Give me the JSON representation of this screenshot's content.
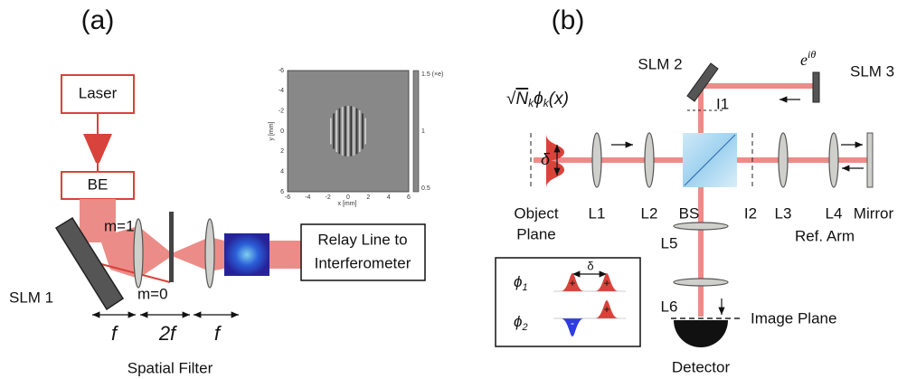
{
  "panel_a": {
    "label": "(a)",
    "laser": "Laser",
    "beam_expander": "BE",
    "order_1": "m=1",
    "order_0": "m=0",
    "slm": "SLM 1",
    "focal_1": "f",
    "focal_2": "2f",
    "focal_3": "f",
    "spatial_filter": "Spatial Filter",
    "relay": [
      "Relay Line to",
      "Interferometer"
    ],
    "inset": {
      "x_label": "x [mm]",
      "y_label": "y [mm]",
      "x_ticks": [
        -6,
        -4,
        -2,
        0,
        2,
        4,
        6
      ],
      "y_ticks": [
        -6,
        -4,
        -2,
        0,
        2,
        4,
        6
      ],
      "colorbar_ticks": [
        "1.5 (×e)",
        "1",
        "0.5"
      ]
    }
  },
  "panel_b": {
    "label": "(b)",
    "slm_2": "SLM 2",
    "slm_3": "SLM 3",
    "phase": {
      "base": "e",
      "exp": "iθ"
    },
    "iris_1": "I1",
    "mode": {
      "root": "√",
      "n": "N",
      "sub1": "k",
      "phi": "ϕ",
      "sub2": "k",
      "arg": "(x)"
    },
    "delta": "δ",
    "object_plane": [
      "Object",
      "Plane"
    ],
    "lens_1": "L1",
    "lens_2": "L2",
    "beam_splitter": "BS",
    "iris_2": "I2",
    "lens_3": "L3",
    "lens_4": "L4",
    "mirror": "Mirror",
    "ref_arm": "Ref. Arm",
    "lens_5": "L5",
    "lens_6": "L6",
    "image_plane": "Image Plane",
    "detector": "Detector",
    "legend": {
      "phi_1": {
        "symbol": "ϕ",
        "sub": "1"
      },
      "phi_2": {
        "symbol": "ϕ",
        "sub": "2"
      },
      "delta": "δ",
      "plus_1": "+",
      "plus_2": "+",
      "minus": "-",
      "plus_3": "+"
    }
  }
}
